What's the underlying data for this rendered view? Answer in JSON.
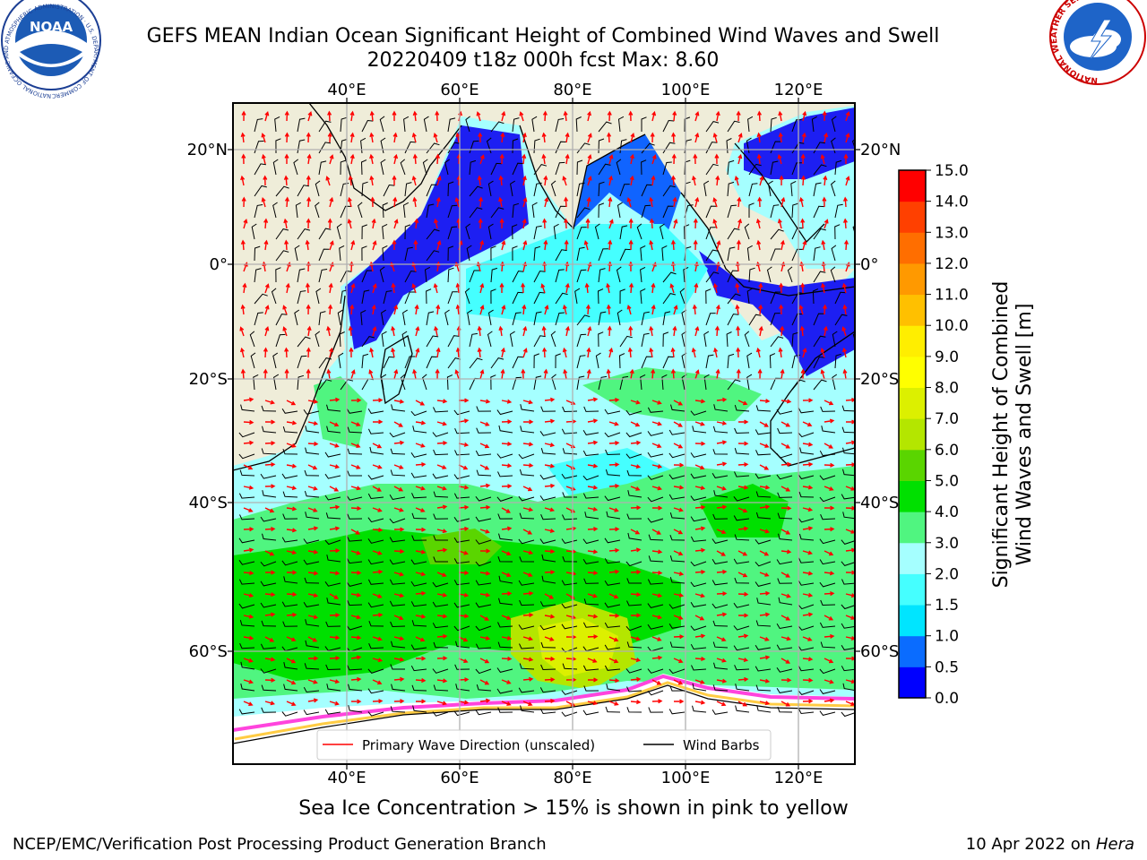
{
  "header": {
    "title_line1": "GEFS MEAN Indian Ocean Significant Height of Combined Wind Waves and Swell",
    "title_line2": "20220409 t18z 000h fcst   Max: 8.60"
  },
  "logos": {
    "left": {
      "name": "NOAA",
      "ring_text": "NATIONAL OCEANIC AND ATMOSPHERIC ADMINISTRATION · U.S. DEPARTMENT OF COMMERCE"
    },
    "right": {
      "ring_text": "NATIONAL WEATHER SERVICE"
    }
  },
  "map": {
    "lon_labels": [
      "40°E",
      "60°E",
      "80°E",
      "100°E",
      "120°E"
    ],
    "lat_labels": [
      "20°N",
      "0°",
      "20°S",
      "40°S",
      "60°S"
    ],
    "legend": {
      "wave_direction": "Primary Wave Direction (unscaled)",
      "wind_barbs": "Wind Barbs"
    }
  },
  "colorbar": {
    "label_line1": "Significant Height of Combined",
    "label_line2": "Wind Waves and Swell [m]",
    "ticks": [
      "0.0",
      "0.5",
      "1.0",
      "1.5",
      "2.0",
      "3.0",
      "4.0",
      "5.0",
      "6.0",
      "7.0",
      "8.0",
      "9.0",
      "10.0",
      "11.0",
      "12.0",
      "13.0",
      "14.0",
      "15.0"
    ],
    "colors": [
      "#0000ff",
      "#0a6cff",
      "#00e5ff",
      "#45ffff",
      "#a5ffff",
      "#50f580",
      "#00e000",
      "#5ad500",
      "#b4e600",
      "#dcf000",
      "#ffff00",
      "#ffee00",
      "#ffc000",
      "#ff9900",
      "#ff6e00",
      "#ff4000",
      "#ff0000"
    ]
  },
  "caption": "Sea Ice Concentration > 15% is shown in pink to yellow",
  "footer": {
    "left": "NCEP/EMC/Verification Post Processing Product Generation Branch",
    "date": "10 Apr 2022 on ",
    "host": "Hera"
  },
  "colors": {
    "land": "#efedd9",
    "ice_pink": "#ff44dd",
    "ice_yellow": "#ffcc44",
    "arrow": "#ff0000",
    "barb": "#000000"
  }
}
